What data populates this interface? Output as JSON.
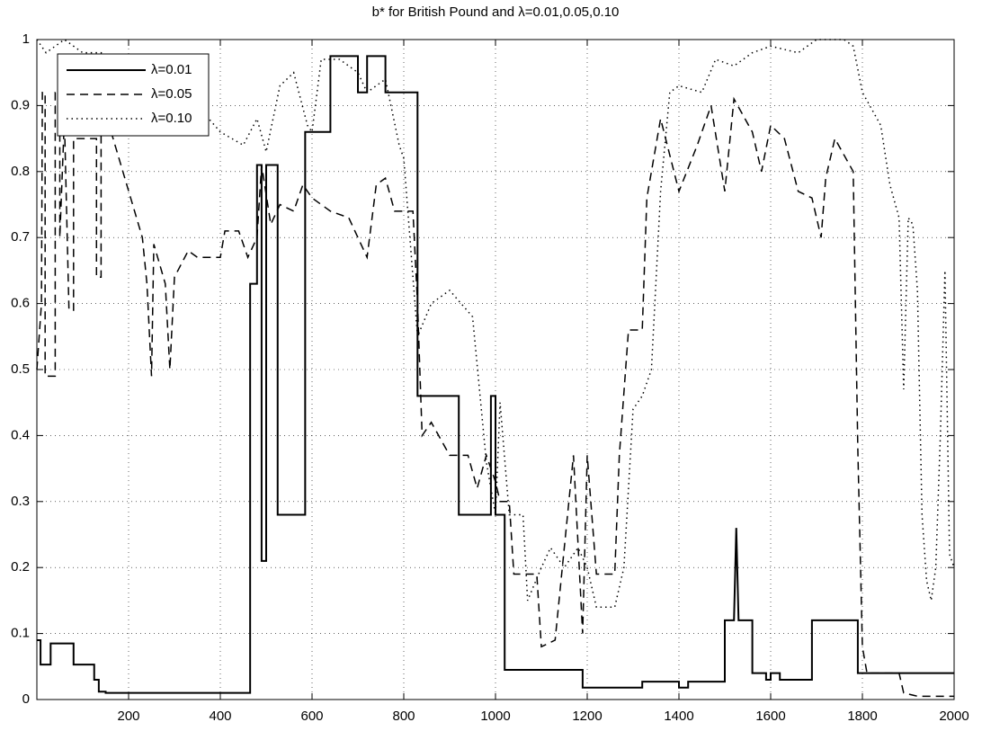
{
  "chart_data": {
    "type": "line",
    "title": "b* for British Pound and λ=0.01,0.05,0.10",
    "xlim": [
      0,
      2000
    ],
    "xticks": [
      200,
      400,
      600,
      800,
      1000,
      1200,
      1400,
      1600,
      1800,
      2000
    ],
    "ylim": [
      0,
      1
    ],
    "yticks": [
      0,
      0.1,
      0.2,
      0.3,
      0.4,
      0.5,
      0.6,
      0.7,
      0.8,
      0.9,
      1
    ],
    "grid": true,
    "legend": "upper left",
    "series": [
      {
        "name": "λ=0.01",
        "color": "#000000",
        "dash": "solid",
        "x": [
          0,
          8,
          8,
          30,
          30,
          80,
          80,
          125,
          125,
          135,
          135,
          150,
          150,
          465,
          465,
          480,
          480,
          490,
          490,
          500,
          500,
          525,
          525,
          585,
          585,
          640,
          640,
          700,
          700,
          720,
          720,
          760,
          760,
          830,
          830,
          920,
          920,
          990,
          990,
          1000,
          1000,
          1020,
          1020,
          1190,
          1190,
          1320,
          1320,
          1400,
          1400,
          1420,
          1420,
          1500,
          1500,
          1520,
          1525,
          1530,
          1560,
          1560,
          1590,
          1590,
          1600,
          1600,
          1620,
          1620,
          1690,
          1690,
          1790,
          1790,
          2000
        ],
        "values": [
          0.09,
          0.09,
          0.053,
          0.053,
          0.085,
          0.085,
          0.053,
          0.053,
          0.03,
          0.03,
          0.012,
          0.012,
          0.01,
          0.01,
          0.63,
          0.63,
          0.81,
          0.81,
          0.21,
          0.21,
          0.81,
          0.81,
          0.28,
          0.28,
          0.86,
          0.86,
          0.975,
          0.975,
          0.92,
          0.92,
          0.975,
          0.975,
          0.92,
          0.92,
          0.46,
          0.46,
          0.28,
          0.28,
          0.46,
          0.46,
          0.28,
          0.28,
          0.045,
          0.045,
          0.018,
          0.018,
          0.027,
          0.027,
          0.018,
          0.018,
          0.027,
          0.027,
          0.12,
          0.12,
          0.26,
          0.12,
          0.12,
          0.04,
          0.04,
          0.03,
          0.03,
          0.04,
          0.04,
          0.03,
          0.03,
          0.12,
          0.12,
          0.04,
          0.04
        ]
      },
      {
        "name": "λ=0.05",
        "color": "#000000",
        "dash": "dashed",
        "x": [
          0,
          10,
          12,
          18,
          18,
          40,
          40,
          50,
          50,
          60,
          70,
          80,
          80,
          130,
          130,
          140,
          140,
          145,
          230,
          240,
          250,
          255,
          280,
          290,
          300,
          330,
          350,
          400,
          410,
          440,
          460,
          480,
          490,
          510,
          530,
          560,
          580,
          600,
          640,
          680,
          720,
          740,
          760,
          780,
          820,
          830,
          840,
          860,
          900,
          940,
          960,
          980,
          1000,
          1010,
          1030,
          1040,
          1090,
          1100,
          1130,
          1140,
          1170,
          1190,
          1200,
          1220,
          1260,
          1270,
          1290,
          1320,
          1330,
          1360,
          1400,
          1440,
          1470,
          1500,
          1520,
          1560,
          1580,
          1600,
          1630,
          1660,
          1690,
          1710,
          1720,
          1740,
          1780,
          1790,
          1800,
          1810,
          1880,
          1890,
          1920,
          2000
        ],
        "values": [
          0.5,
          0.6,
          0.92,
          0.92,
          0.49,
          0.49,
          0.92,
          0.92,
          0.7,
          0.88,
          0.59,
          0.59,
          0.85,
          0.85,
          0.64,
          0.64,
          0.9,
          0.9,
          0.7,
          0.63,
          0.49,
          0.69,
          0.63,
          0.5,
          0.64,
          0.68,
          0.67,
          0.67,
          0.71,
          0.71,
          0.67,
          0.7,
          0.81,
          0.72,
          0.75,
          0.74,
          0.78,
          0.76,
          0.74,
          0.73,
          0.67,
          0.78,
          0.79,
          0.74,
          0.74,
          0.6,
          0.4,
          0.42,
          0.37,
          0.37,
          0.32,
          0.37,
          0.33,
          0.3,
          0.3,
          0.19,
          0.19,
          0.08,
          0.09,
          0.16,
          0.37,
          0.1,
          0.37,
          0.19,
          0.19,
          0.37,
          0.56,
          0.56,
          0.76,
          0.88,
          0.77,
          0.84,
          0.9,
          0.77,
          0.91,
          0.86,
          0.8,
          0.87,
          0.85,
          0.77,
          0.76,
          0.7,
          0.79,
          0.85,
          0.8,
          0.38,
          0.08,
          0.04,
          0.04,
          0.01,
          0.005,
          0.005
        ]
      },
      {
        "name": "λ=0.10",
        "color": "#000000",
        "dash": "dotted",
        "x": [
          0,
          20,
          60,
          100,
          140,
          180,
          220,
          260,
          300,
          350,
          400,
          450,
          480,
          500,
          530,
          560,
          590,
          600,
          620,
          660,
          700,
          720,
          760,
          790,
          800,
          830,
          860,
          900,
          950,
          980,
          1000,
          1010,
          1030,
          1060,
          1070,
          1100,
          1120,
          1150,
          1180,
          1200,
          1220,
          1260,
          1280,
          1300,
          1320,
          1340,
          1360,
          1380,
          1400,
          1450,
          1480,
          1520,
          1560,
          1600,
          1660,
          1700,
          1760,
          1780,
          1800,
          1840,
          1860,
          1880,
          1890,
          1900,
          1910,
          1920,
          1930,
          1940,
          1950,
          1960,
          1970,
          1980,
          1990,
          2000
        ],
        "values": [
          1.0,
          0.98,
          1.0,
          0.98,
          0.98,
          0.96,
          0.95,
          0.96,
          0.94,
          0.9,
          0.86,
          0.84,
          0.88,
          0.83,
          0.93,
          0.95,
          0.87,
          0.86,
          0.97,
          0.97,
          0.95,
          0.92,
          0.94,
          0.84,
          0.82,
          0.55,
          0.6,
          0.62,
          0.58,
          0.36,
          0.28,
          0.45,
          0.28,
          0.28,
          0.15,
          0.2,
          0.23,
          0.2,
          0.23,
          0.2,
          0.14,
          0.14,
          0.2,
          0.44,
          0.46,
          0.5,
          0.77,
          0.92,
          0.93,
          0.92,
          0.97,
          0.96,
          0.98,
          0.99,
          0.98,
          1.0,
          1.0,
          0.99,
          0.92,
          0.87,
          0.78,
          0.73,
          0.47,
          0.73,
          0.72,
          0.62,
          0.28,
          0.18,
          0.15,
          0.2,
          0.4,
          0.65,
          0.22,
          0.2
        ]
      }
    ]
  }
}
